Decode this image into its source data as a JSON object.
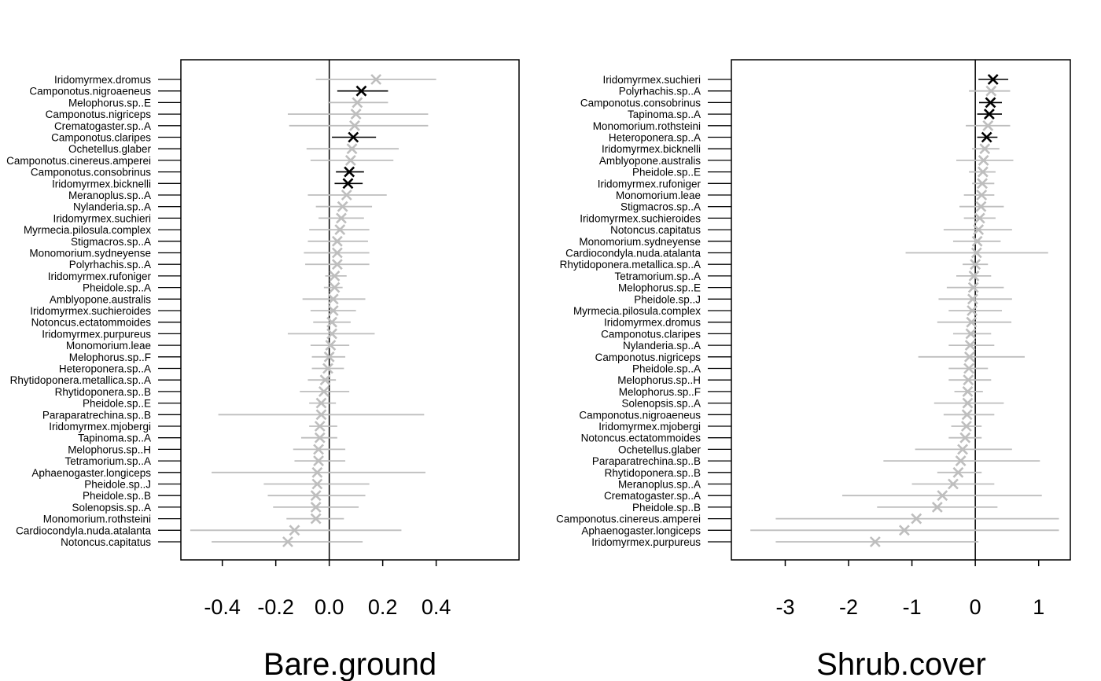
{
  "chart_data": [
    {
      "type": "forest",
      "xlabel": "Bare.ground",
      "xlim": [
        -0.555,
        0.71
      ],
      "xticks": [
        -0.4,
        -0.2,
        0.0,
        0.2,
        0.4
      ],
      "xtick_labels": [
        "-0.4",
        "-0.2",
        "0.0",
        "0.2",
        "0.4"
      ],
      "reference_line": 0,
      "colors": {
        "significant": "#000000",
        "not_significant": "#bebebe"
      },
      "species": [
        "Iridomyrmex.dromus",
        "Camponotus.nigroaeneus",
        "Melophorus.sp..E",
        "Camponotus.nigriceps",
        "Crematogaster.sp..A",
        "Camponotus.claripes",
        "Ochetellus.glaber",
        "Camponotus.cinereus.amperei",
        "Camponotus.consobrinus",
        "Iridomyrmex.bicknelli",
        "Meranoplus.sp..A",
        "Nylanderia.sp..A",
        "Iridomyrmex.suchieri",
        "Myrmecia.pilosula.complex",
        "Stigmacros.sp..A",
        "Monomorium.sydneyense",
        "Polyrhachis.sp..A",
        "Iridomyrmex.rufoniger",
        "Pheidole.sp..A",
        "Amblyopone.australis",
        "Iridomyrmex.suchieroides",
        "Notoncus.ectatommoides",
        "Iridomyrmex.purpureus",
        "Monomorium.leae",
        "Melophorus.sp..F",
        "Heteroponera.sp..A",
        "Rhytidoponera.metallica.sp..A",
        "Rhytidoponera.sp..B",
        "Pheidole.sp..E",
        "Paraparatrechina.sp..B",
        "Iridomyrmex.mjobergi",
        "Tapinoma.sp..A",
        "Melophorus.sp..H",
        "Tetramorium.sp..A",
        "Aphaenogaster.longiceps",
        "Pheidole.sp..J",
        "Pheidole.sp..B",
        "Solenopsis.sp..A",
        "Monomorium.rothsteini",
        "Cardiocondyla.nuda.atalanta",
        "Notoncus.capitatus"
      ],
      "estimates": [
        0.175,
        0.12,
        0.105,
        0.1,
        0.095,
        0.09,
        0.085,
        0.08,
        0.075,
        0.07,
        0.065,
        0.05,
        0.045,
        0.04,
        0.03,
        0.03,
        0.03,
        0.02,
        0.02,
        0.015,
        0.015,
        0.01,
        0.01,
        0.005,
        0,
        -0.005,
        -0.015,
        -0.02,
        -0.03,
        -0.03,
        -0.035,
        -0.035,
        -0.04,
        -0.04,
        -0.045,
        -0.045,
        -0.05,
        -0.05,
        -0.05,
        -0.13,
        -0.155
      ],
      "lower": [
        -0.05,
        0.03,
        -0.005,
        -0.155,
        -0.15,
        0.01,
        -0.085,
        -0.07,
        0.025,
        0.02,
        -0.08,
        -0.05,
        -0.04,
        -0.075,
        -0.08,
        -0.095,
        -0.09,
        -0.015,
        -0.02,
        -0.1,
        -0.07,
        -0.06,
        -0.155,
        -0.07,
        -0.065,
        -0.065,
        -0.08,
        -0.11,
        -0.075,
        -0.415,
        -0.075,
        -0.105,
        -0.135,
        -0.13,
        -0.44,
        -0.245,
        -0.23,
        -0.21,
        -0.16,
        -0.52,
        -0.44
      ],
      "upper": [
        0.4,
        0.22,
        0.22,
        0.37,
        0.37,
        0.175,
        0.26,
        0.24,
        0.13,
        0.125,
        0.215,
        0.16,
        0.13,
        0.15,
        0.145,
        0.15,
        0.15,
        0.065,
        0.05,
        0.135,
        0.1,
        0.08,
        0.17,
        0.075,
        0.06,
        0.055,
        0.025,
        0.075,
        0.025,
        0.355,
        0.03,
        0.03,
        0.06,
        0.06,
        0.36,
        0.15,
        0.135,
        0.11,
        0.055,
        0.27,
        0.125
      ],
      "significant": [
        false,
        true,
        false,
        false,
        false,
        true,
        false,
        false,
        true,
        true,
        false,
        false,
        false,
        false,
        false,
        false,
        false,
        false,
        false,
        false,
        false,
        false,
        false,
        false,
        false,
        false,
        false,
        false,
        false,
        false,
        false,
        false,
        false,
        false,
        false,
        false,
        false,
        false,
        false,
        false,
        false
      ]
    },
    {
      "type": "forest",
      "xlabel": "Shrub.cover",
      "xlim": [
        -3.85,
        1.5
      ],
      "xticks": [
        -3,
        -2,
        -1,
        0,
        1
      ],
      "xtick_labels": [
        "-3",
        "-2",
        "-1",
        "0",
        "1"
      ],
      "reference_line": 0,
      "colors": {
        "significant": "#000000",
        "not_significant": "#bebebe"
      },
      "species": [
        "Iridomyrmex.suchieri",
        "Polyrhachis.sp..A",
        "Camponotus.consobrinus",
        "Tapinoma.sp..A",
        "Monomorium.rothsteini",
        "Heteroponera.sp..A",
        "Iridomyrmex.bicknelli",
        "Amblyopone.australis",
        "Pheidole.sp..E",
        "Iridomyrmex.rufoniger",
        "Monomorium.leae",
        "Stigmacros.sp..A",
        "Iridomyrmex.suchieroides",
        "Notoncus.capitatus",
        "Monomorium.sydneyense",
        "Cardiocondyla.nuda.atalanta",
        "Rhytidoponera.metallica.sp..A",
        "Tetramorium.sp..A",
        "Melophorus.sp..E",
        "Pheidole.sp..J",
        "Myrmecia.pilosula.complex",
        "Iridomyrmex.dromus",
        "Camponotus.claripes",
        "Nylanderia.sp..A",
        "Camponotus.nigriceps",
        "Pheidole.sp..A",
        "Melophorus.sp..H",
        "Melophorus.sp..F",
        "Solenopsis.sp..A",
        "Camponotus.nigroaeneus",
        "Iridomyrmex.mjobergi",
        "Notoncus.ectatommoides",
        "Ochetellus.glaber",
        "Paraparatrechina.sp..B",
        "Rhytidoponera.sp..B",
        "Meranoplus.sp..A",
        "Crematogaster.sp..A",
        "Pheidole.sp..B",
        "Camponotus.cinereus.amperei",
        "Aphaenogaster.longiceps",
        "Iridomyrmex.purpureus"
      ],
      "estimates": [
        0.28,
        0.25,
        0.24,
        0.22,
        0.2,
        0.18,
        0.15,
        0.13,
        0.12,
        0.11,
        0.1,
        0.09,
        0.07,
        0.05,
        0.03,
        0.02,
        0,
        -0.02,
        -0.03,
        -0.04,
        -0.05,
        -0.06,
        -0.07,
        -0.08,
        -0.09,
        -0.1,
        -0.11,
        -0.12,
        -0.12,
        -0.13,
        -0.14,
        -0.16,
        -0.2,
        -0.23,
        -0.27,
        -0.35,
        -0.52,
        -0.6,
        -0.93,
        -1.12,
        -1.58
      ],
      "lower": [
        0.05,
        -0.1,
        0.06,
        0.03,
        -0.15,
        0.03,
        -0.05,
        -0.3,
        -0.1,
        -0.05,
        -0.18,
        -0.25,
        -0.18,
        -0.5,
        -0.35,
        -1.1,
        -0.2,
        -0.3,
        -0.45,
        -0.58,
        -0.42,
        -0.6,
        -0.35,
        -0.42,
        -0.9,
        -0.42,
        -0.42,
        -0.33,
        -0.65,
        -0.5,
        -0.38,
        -0.42,
        -0.95,
        -1.45,
        -0.6,
        -1.0,
        -2.1,
        -1.55,
        -3.15,
        -3.55,
        -3.15
      ],
      "upper": [
        0.52,
        0.55,
        0.42,
        0.42,
        0.55,
        0.35,
        0.38,
        0.6,
        0.32,
        0.3,
        0.3,
        0.45,
        0.32,
        0.58,
        0.4,
        1.15,
        0.2,
        0.25,
        0.45,
        0.58,
        0.42,
        0.57,
        0.25,
        0.3,
        0.78,
        0.2,
        0.25,
        0.12,
        0.45,
        0.3,
        0.1,
        0.1,
        0.58,
        1.02,
        0.1,
        0.3,
        1.05,
        0.35,
        1.32,
        1.32,
        0.05
      ],
      "significant": [
        true,
        false,
        true,
        true,
        false,
        true,
        false,
        false,
        false,
        false,
        false,
        false,
        false,
        false,
        false,
        false,
        false,
        false,
        false,
        false,
        false,
        false,
        false,
        false,
        false,
        false,
        false,
        false,
        false,
        false,
        false,
        false,
        false,
        false,
        false,
        false,
        false,
        false,
        false,
        false,
        false
      ]
    }
  ]
}
